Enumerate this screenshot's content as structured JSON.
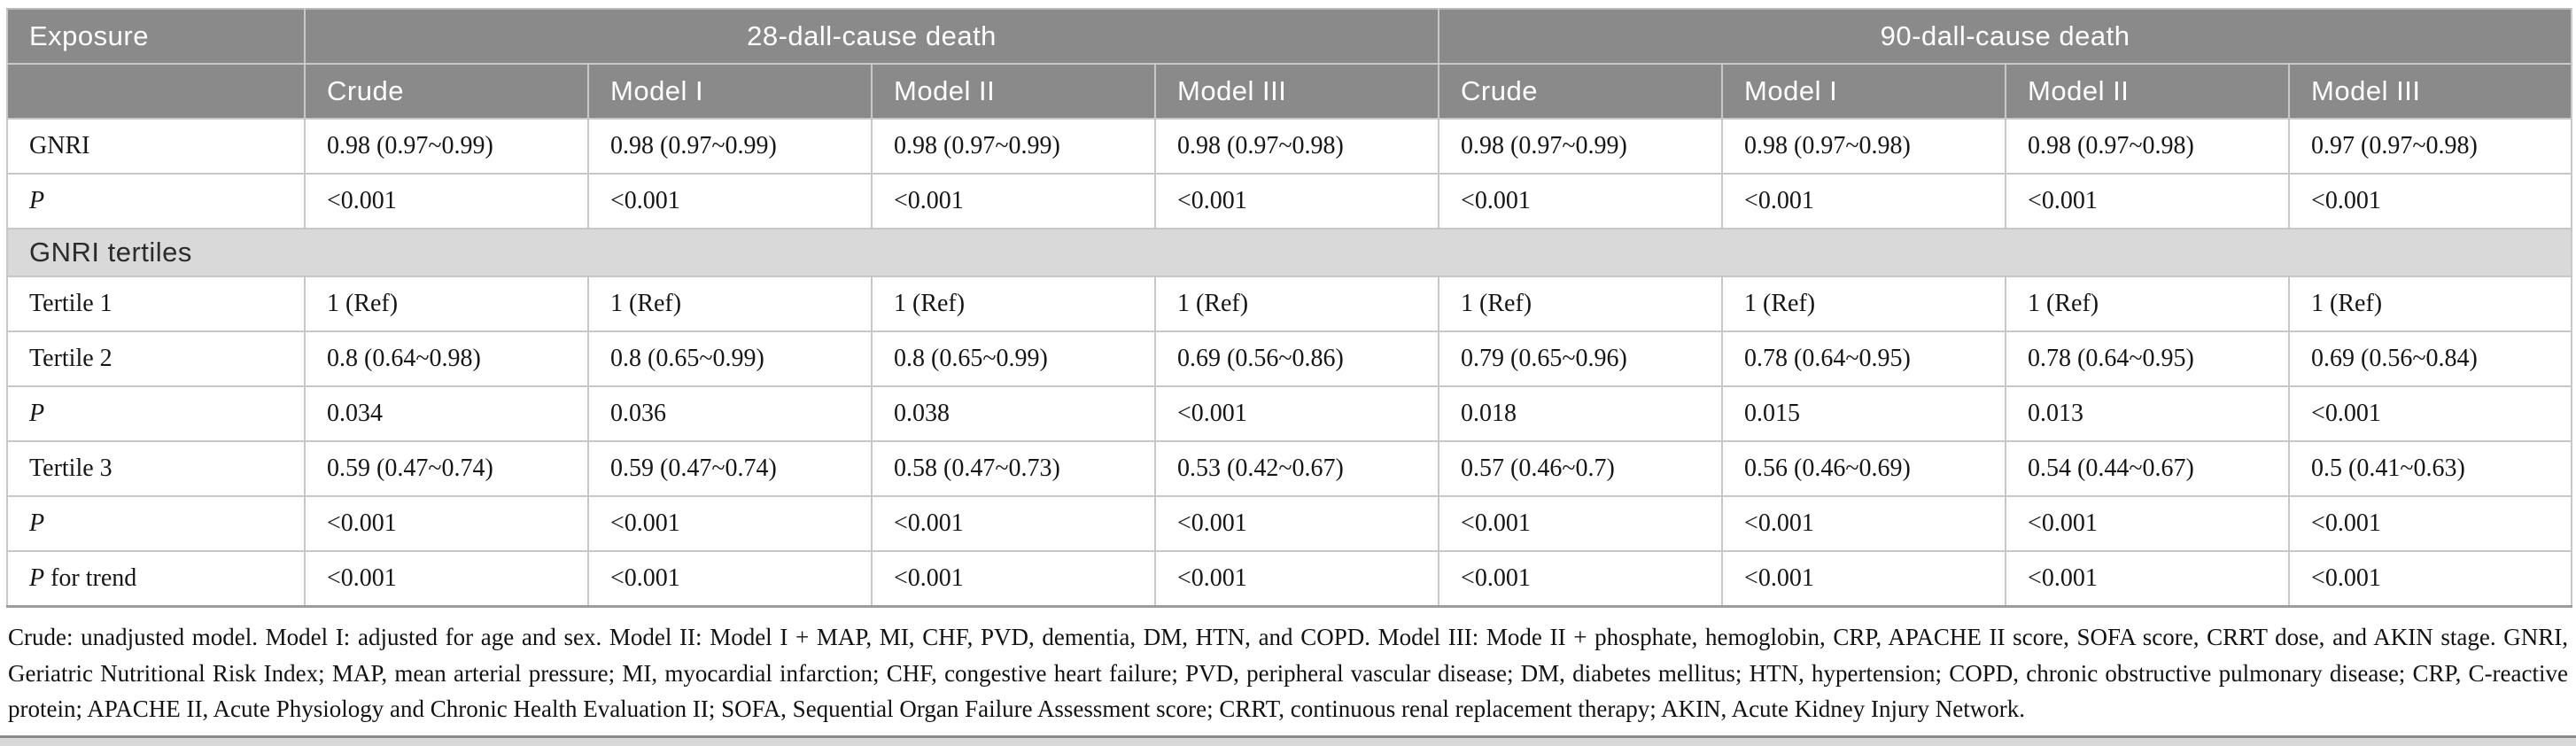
{
  "colors": {
    "header_bg": "#8a8a8a",
    "header_text": "#ffffff",
    "section_bg": "#d9d9d9",
    "cell_border": "#c7c7c7"
  },
  "table": {
    "corner_label": "Exposure",
    "col_groups": [
      {
        "label": "28-dall-cause death"
      },
      {
        "label": "90-dall-cause death"
      }
    ],
    "sub_headers": [
      "Crude",
      "Model I",
      "Model II",
      "Model III",
      "Crude",
      "Model I",
      "Model II",
      "Model III"
    ],
    "rows": [
      {
        "label_italic": "",
        "label": "GNRI",
        "values": [
          "0.98 (0.97~0.99)",
          "0.98 (0.97~0.99)",
          "0.98 (0.97~0.99)",
          "0.98 (0.97~0.98)",
          "0.98 (0.97~0.99)",
          "0.98 (0.97~0.98)",
          "0.98 (0.97~0.98)",
          "0.97 (0.97~0.98)"
        ]
      },
      {
        "label_italic": "P",
        "label": "",
        "values": [
          "<0.001",
          "<0.001",
          "<0.001",
          "<0.001",
          "<0.001",
          "<0.001",
          "<0.001",
          "<0.001"
        ]
      },
      {
        "section": "GNRI tertiles"
      },
      {
        "label_italic": "",
        "label": "Tertile 1",
        "values": [
          "1 (Ref)",
          "1 (Ref)",
          "1 (Ref)",
          "1 (Ref)",
          "1 (Ref)",
          "1 (Ref)",
          "1 (Ref)",
          "1 (Ref)"
        ]
      },
      {
        "label_italic": "",
        "label": "Tertile 2",
        "values": [
          "0.8 (0.64~0.98)",
          "0.8 (0.65~0.99)",
          "0.8 (0.65~0.99)",
          "0.69 (0.56~0.86)",
          "0.79 (0.65~0.96)",
          "0.78 (0.64~0.95)",
          "0.78 (0.64~0.95)",
          "0.69 (0.56~0.84)"
        ]
      },
      {
        "label_italic": "P",
        "label": "",
        "values": [
          "0.034",
          "0.036",
          "0.038",
          "<0.001",
          "0.018",
          "0.015",
          "0.013",
          "<0.001"
        ]
      },
      {
        "label_italic": "",
        "label": "Tertile 3",
        "values": [
          "0.59 (0.47~0.74)",
          "0.59 (0.47~0.74)",
          "0.58 (0.47~0.73)",
          "0.53 (0.42~0.67)",
          "0.57 (0.46~0.7)",
          "0.56 (0.46~0.69)",
          "0.54 (0.44~0.67)",
          "0.5 (0.41~0.63)"
        ]
      },
      {
        "label_italic": "P",
        "label": "",
        "values": [
          "<0.001",
          "<0.001",
          "<0.001",
          "<0.001",
          "<0.001",
          "<0.001",
          "<0.001",
          "<0.001"
        ]
      },
      {
        "label_italic": "P",
        "label": " for trend",
        "values": [
          "<0.001",
          "<0.001",
          "<0.001",
          "<0.001",
          "<0.001",
          "<0.001",
          "<0.001",
          "<0.001"
        ]
      }
    ]
  },
  "footnote": "Crude: unadjusted model. Model I: adjusted for age and sex. Model II: Model I + MAP, MI, CHF, PVD, dementia, DM, HTN, and COPD. Model III: Mode II + phosphate, hemoglobin, CRP, APACHE II score, SOFA score, CRRT dose, and AKIN stage. GNRI, Geriatric Nutritional Risk Index; MAP, mean arterial pressure; MI, myocardial infarction; CHF, congestive heart failure; PVD, peripheral vascular disease; DM, diabetes mellitus; HTN, hypertension; COPD, chronic obstructive pulmonary disease; CRP, C-reactive protein; APACHE II, Acute Physiology and Chronic Health Evaluation II; SOFA, Sequential Organ Failure Assessment score; CRRT, continuous renal replacement therapy; AKIN, Acute Kidney Injury Network."
}
